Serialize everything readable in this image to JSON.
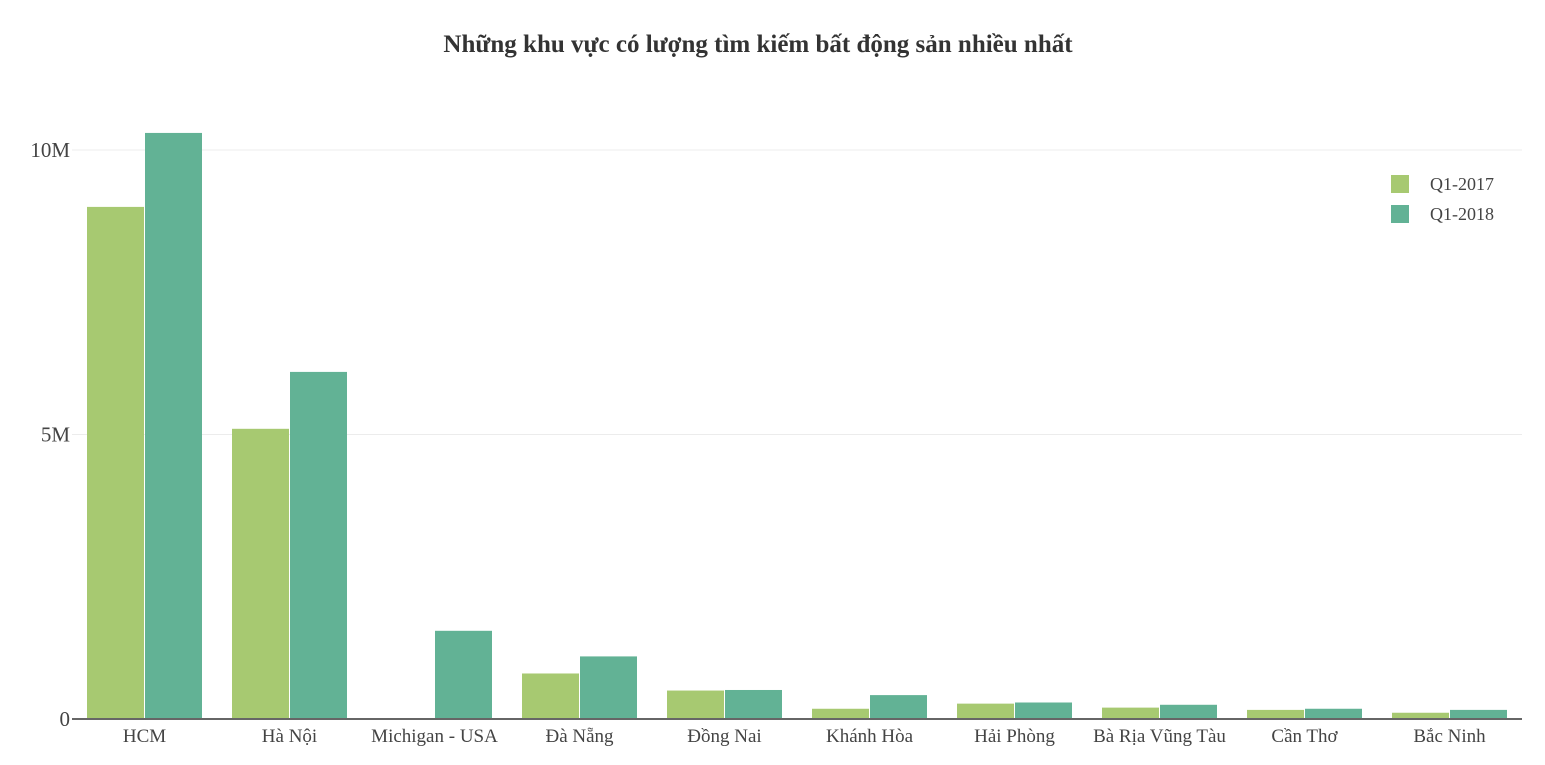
{
  "chart_data": {
    "type": "bar",
    "title": "Những khu vực có lượng tìm kiếm bất động sản nhiều nhất",
    "xlabel": "",
    "ylabel": "",
    "categories": [
      "HCM",
      "Hà Nội",
      "Michigan - USA",
      "Đà Nẵng",
      "Đồng Nai",
      "Khánh Hòa",
      "Hải Phòng",
      "Bà Rịa Vũng Tàu",
      "Cần Thơ",
      "Bắc Ninh"
    ],
    "series": [
      {
        "name": "Q1-2017",
        "color": "#a7c971",
        "values": [
          9000000,
          5100000,
          0,
          800000,
          500000,
          180000,
          270000,
          200000,
          160000,
          110000
        ]
      },
      {
        "name": "Q1-2018",
        "color": "#62b295",
        "values": [
          10300000,
          6100000,
          1550000,
          1100000,
          510000,
          420000,
          290000,
          250000,
          180000,
          160000
        ]
      }
    ],
    "yticks": [
      {
        "value": 0,
        "label": "0"
      },
      {
        "value": 5000000,
        "label": "5M"
      },
      {
        "value": 10000000,
        "label": "10M"
      }
    ],
    "ylim": [
      0,
      10300000
    ],
    "grid": true,
    "legend_position": "top-right"
  }
}
